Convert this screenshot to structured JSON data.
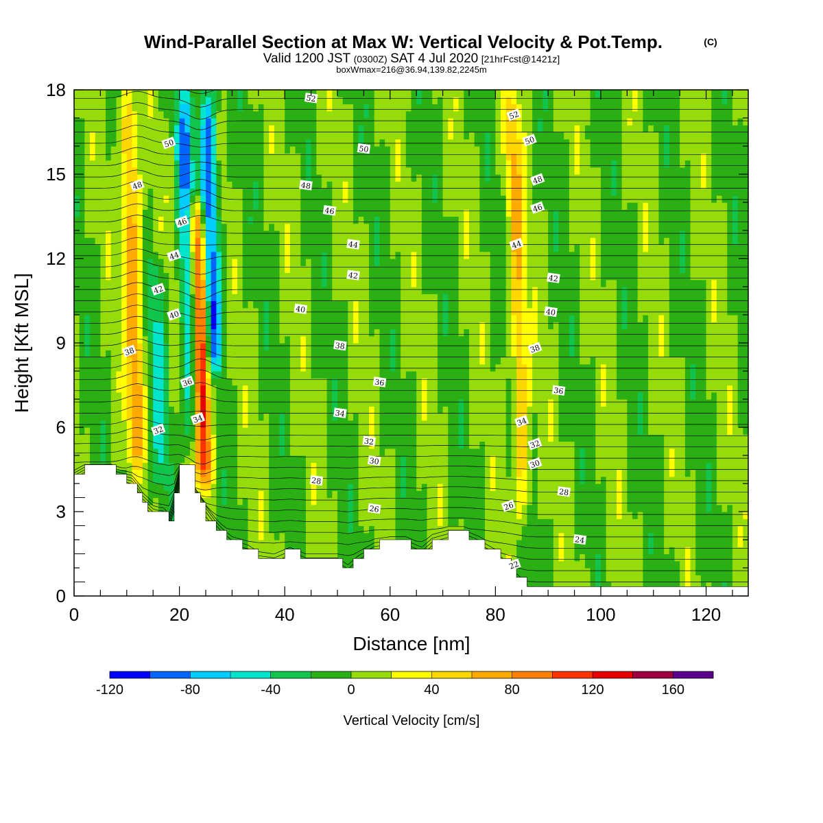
{
  "title": {
    "main": "Wind-Parallel Section at Max W: Vertical Velocity & Pot.Temp.",
    "copyright": "(C)",
    "valid_prefix": "Valid 1200 JST",
    "valid_z": "(0300Z)",
    "valid_date": "SAT 4 Jul 2020",
    "forecast": "[21hrFcst@1421z]",
    "box_info": "boxWmax=216@36.94,139.82,2245m"
  },
  "chart_data": {
    "type": "heatmap",
    "xlabel": "Distance [nm]",
    "ylabel": "Height [Kft MSL]",
    "xlim": [
      0,
      128
    ],
    "ylim": [
      0,
      18
    ],
    "x_ticks": [
      "0",
      "20",
      "40",
      "60",
      "80",
      "100",
      "120"
    ],
    "y_ticks": [
      "0",
      "3",
      "6",
      "9",
      "12",
      "15",
      "18"
    ],
    "colorbar": {
      "label": "Vertical Velocity [cm/s]",
      "range": [
        -120,
        180
      ],
      "step": 20,
      "tick_labels": [
        "-120",
        "-80",
        "-40",
        "0",
        "40",
        "80",
        "120",
        "160"
      ],
      "colors": [
        "#0000ff",
        "#0066ff",
        "#00ccff",
        "#00e5cc",
        "#11c44d",
        "#2ab014",
        "#96dc0a",
        "#ffff00",
        "#ffd700",
        "#ffaa00",
        "#ff7f00",
        "#ff3300",
        "#e60000",
        "#a00040",
        "#5a008c"
      ]
    },
    "background_w": 0,
    "updrafts": [
      {
        "x": 11.5,
        "w": 80,
        "z_range": [
          4.5,
          18
        ]
      },
      {
        "x": 24.0,
        "w": 140,
        "z_range": [
          4.0,
          14
        ]
      },
      {
        "x": 84.5,
        "w": 60,
        "z_range": [
          2.5,
          18
        ]
      }
    ],
    "downdrafts": [
      {
        "x": 22.0,
        "w": -80,
        "z_range": [
          5.0,
          18
        ]
      },
      {
        "x": 26.5,
        "w": -100,
        "z_range": [
          8.0,
          18
        ]
      },
      {
        "x": 16.0,
        "w": -40,
        "z_range": [
          4.0,
          12
        ]
      }
    ],
    "terrain_kft": [
      [
        0,
        4.2
      ],
      [
        2,
        4.5
      ],
      [
        7,
        4.5
      ],
      [
        9,
        4.2
      ],
      [
        11,
        3.9
      ],
      [
        13,
        3.2
      ],
      [
        15,
        2.9
      ],
      [
        17,
        2.9
      ],
      [
        18,
        2.6
      ],
      [
        19,
        3.5
      ],
      [
        20,
        4.5
      ],
      [
        22,
        4.5
      ],
      [
        23,
        3.6
      ],
      [
        25,
        2.8
      ],
      [
        27,
        2.4
      ],
      [
        30,
        1.9
      ],
      [
        33,
        1.7
      ],
      [
        35,
        1.4
      ],
      [
        38,
        1.3
      ],
      [
        41,
        1.6
      ],
      [
        44,
        1.3
      ],
      [
        47,
        1.3
      ],
      [
        50,
        1.3
      ],
      [
        52,
        1.0
      ],
      [
        54,
        1.4
      ],
      [
        57,
        1.8
      ],
      [
        60,
        1.9
      ],
      [
        63,
        1.9
      ],
      [
        66,
        1.6
      ],
      [
        68,
        2.0
      ],
      [
        71,
        2.2
      ],
      [
        74,
        2.2
      ],
      [
        77,
        1.9
      ],
      [
        80,
        1.5
      ],
      [
        82,
        1.2
      ],
      [
        84,
        0.8
      ],
      [
        86,
        0.4
      ],
      [
        88,
        0.3
      ],
      [
        128,
        0.3
      ]
    ],
    "theta_contour_labels": [
      {
        "value": "52",
        "x": 45,
        "z": 17.7
      },
      {
        "value": "52",
        "x": 83.5,
        "z": 17.1
      },
      {
        "value": "50",
        "x": 18,
        "z": 16.1
      },
      {
        "value": "50",
        "x": 55,
        "z": 15.9
      },
      {
        "value": "50",
        "x": 86.5,
        "z": 16.2
      },
      {
        "value": "48",
        "x": 12,
        "z": 14.6
      },
      {
        "value": "48",
        "x": 44,
        "z": 14.6
      },
      {
        "value": "48",
        "x": 88,
        "z": 14.8
      },
      {
        "value": "46",
        "x": 20.5,
        "z": 13.3
      },
      {
        "value": "46",
        "x": 48.5,
        "z": 13.7
      },
      {
        "value": "46",
        "x": 88,
        "z": 13.8
      },
      {
        "value": "44",
        "x": 19,
        "z": 12.1
      },
      {
        "value": "44",
        "x": 53,
        "z": 12.5
      },
      {
        "value": "44",
        "x": 84,
        "z": 12.5
      },
      {
        "value": "42",
        "x": 16,
        "z": 10.9
      },
      {
        "value": "42",
        "x": 53,
        "z": 11.4
      },
      {
        "value": "42",
        "x": 91,
        "z": 11.3
      },
      {
        "value": "40",
        "x": 19,
        "z": 10.0
      },
      {
        "value": "40",
        "x": 43,
        "z": 10.2
      },
      {
        "value": "40",
        "x": 90.5,
        "z": 10.1
      },
      {
        "value": "38",
        "x": 10.5,
        "z": 8.7
      },
      {
        "value": "38",
        "x": 50.5,
        "z": 8.9
      },
      {
        "value": "38",
        "x": 87.5,
        "z": 8.8
      },
      {
        "value": "36",
        "x": 21.5,
        "z": 7.6
      },
      {
        "value": "36",
        "x": 58,
        "z": 7.6
      },
      {
        "value": "36",
        "x": 92,
        "z": 7.3
      },
      {
        "value": "34",
        "x": 23.5,
        "z": 6.3
      },
      {
        "value": "34",
        "x": 50.5,
        "z": 6.5
      },
      {
        "value": "34",
        "x": 85,
        "z": 6.2
      },
      {
        "value": "32",
        "x": 16,
        "z": 5.9
      },
      {
        "value": "32",
        "x": 56,
        "z": 5.5
      },
      {
        "value": "32",
        "x": 87.5,
        "z": 5.4
      },
      {
        "value": "30",
        "x": 57,
        "z": 4.8
      },
      {
        "value": "30",
        "x": 87.5,
        "z": 4.7
      },
      {
        "value": "28",
        "x": 46,
        "z": 4.1
      },
      {
        "value": "28",
        "x": 93,
        "z": 3.7
      },
      {
        "value": "26",
        "x": 57,
        "z": 3.1
      },
      {
        "value": "26",
        "x": 82.5,
        "z": 3.2
      },
      {
        "value": "24",
        "x": 96,
        "z": 2.0
      },
      {
        "value": "22",
        "x": 83.5,
        "z": 1.1
      }
    ]
  }
}
